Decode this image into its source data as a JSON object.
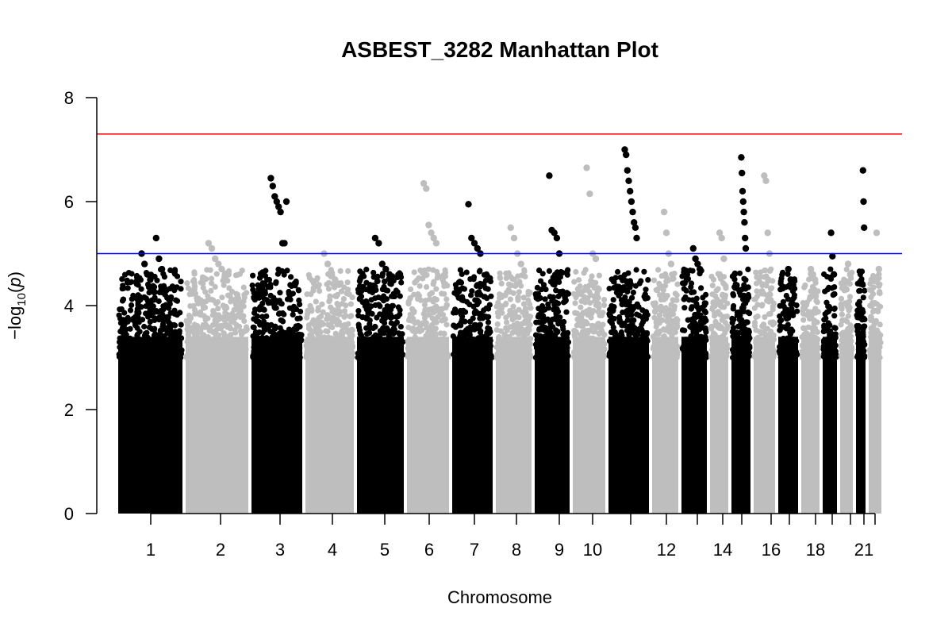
{
  "chart_data": {
    "type": "scatter",
    "title": "ASBEST_3282 Manhattan Plot",
    "xlabel": "Chromosome",
    "ylabel": "-log10(p)",
    "ylim": [
      0,
      8
    ],
    "y_ticks": [
      0,
      2,
      4,
      6,
      8
    ],
    "x_tick_labels": [
      "1",
      "2",
      "3",
      "4",
      "5",
      "6",
      "7",
      "8",
      "9",
      "10",
      "12",
      "14",
      "16",
      "18",
      "21"
    ],
    "thresholds": [
      {
        "value": 7.3,
        "color": "#ff0000"
      },
      {
        "value": 5.0,
        "color": "#0000ff"
      }
    ],
    "point_colors": [
      "#000000",
      "#bebebe"
    ],
    "grid": false,
    "chromosomes": [
      {
        "chr": "1",
        "label": "1",
        "top": [
          5.0,
          4.8,
          4.6,
          4.5,
          4.3,
          5.3,
          4.9,
          4.7
        ]
      },
      {
        "chr": "2",
        "label": "2",
        "top": [
          5.2,
          5.1,
          4.9,
          4.8,
          4.7,
          4.6,
          4.6
        ]
      },
      {
        "chr": "3",
        "label": "3",
        "top": [
          6.45,
          6.3,
          6.1,
          6.0,
          5.9,
          5.8,
          5.2,
          5.2,
          6.0
        ]
      },
      {
        "chr": "4",
        "label": "4",
        "top": [
          5.0,
          4.8,
          4.6,
          4.5,
          4.4
        ]
      },
      {
        "chr": "5",
        "label": "5",
        "top": [
          5.3,
          5.2,
          4.8,
          4.7,
          4.6
        ]
      },
      {
        "chr": "6",
        "label": "6",
        "top": [
          6.35,
          6.25,
          5.55,
          5.4,
          5.3,
          5.2
        ]
      },
      {
        "chr": "7",
        "label": "7",
        "top": [
          5.95,
          5.3,
          5.2,
          5.1,
          5.0
        ]
      },
      {
        "chr": "8",
        "label": "8",
        "top": [
          5.5,
          5.3,
          5.0,
          4.8
        ]
      },
      {
        "chr": "9",
        "label": "9",
        "top": [
          6.5,
          5.45,
          5.4,
          5.3,
          5.0
        ]
      },
      {
        "chr": "10",
        "label": "10",
        "top": [
          6.65,
          6.15,
          5.0,
          4.9
        ]
      },
      {
        "chr": "11",
        "label": "",
        "top": [
          7.0,
          6.9,
          6.6,
          6.4,
          6.2,
          6.0,
          5.8,
          5.6,
          5.5,
          5.3
        ]
      },
      {
        "chr": "12",
        "label": "12",
        "top": [
          5.8,
          5.4,
          5.0,
          4.8
        ]
      },
      {
        "chr": "13",
        "label": "",
        "top": [
          5.1,
          4.9,
          4.8,
          4.7
        ]
      },
      {
        "chr": "14",
        "label": "14",
        "top": [
          5.4,
          5.3,
          4.9
        ]
      },
      {
        "chr": "15",
        "label": "",
        "top": [
          6.85,
          6.55,
          6.2,
          6.0,
          5.8,
          5.6,
          5.3,
          5.1
        ]
      },
      {
        "chr": "16",
        "label": "16",
        "top": [
          6.5,
          6.4,
          5.4,
          5.0
        ]
      },
      {
        "chr": "17",
        "label": "",
        "top": [
          4.7,
          4.5,
          4.4
        ]
      },
      {
        "chr": "18",
        "label": "18",
        "top": [
          4.7,
          4.6,
          4.5
        ]
      },
      {
        "chr": "19",
        "label": "",
        "top": [
          5.4,
          4.95,
          4.6
        ]
      },
      {
        "chr": "20",
        "label": "",
        "top": [
          4.8,
          4.6
        ]
      },
      {
        "chr": "21",
        "label": "21",
        "top": [
          6.6,
          6.0,
          5.5
        ]
      },
      {
        "chr": "22",
        "label": "",
        "top": [
          5.4,
          4.7
        ]
      }
    ]
  }
}
